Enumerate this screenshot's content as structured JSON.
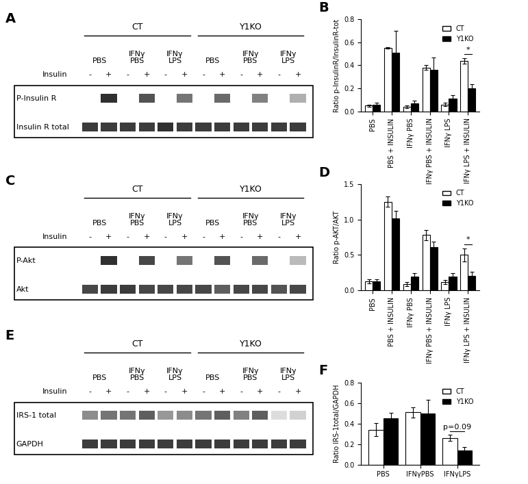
{
  "chart_data": [
    {
      "type": "bar",
      "panel": "B",
      "categories": [
        "PBS",
        "PBS + INSULIN",
        "IFNγ PBS",
        "IFNγ PBS + INSULIN",
        "IFNγ LPS",
        "IFNγ LPS + INSULIN"
      ],
      "y_label": "Ratio p-InsulinR/InsulinR-tot",
      "ylim": [
        0,
        0.8
      ],
      "yticks": [
        {
          "value": 0,
          "label": "0.0"
        },
        {
          "value": 0.2,
          "label": "0.2"
        },
        {
          "value": 0.4,
          "label": "0.4"
        },
        {
          "value": 0.6,
          "label": "0.6"
        },
        {
          "value": 0.8,
          "label": "0.8"
        }
      ],
      "legend": "upper right",
      "grid": false,
      "series": [
        {
          "name": "CT",
          "color": "#ffffff",
          "values": [
            0.05,
            0.55,
            0.04,
            0.38,
            0.06,
            0.44
          ],
          "errors": [
            0.01,
            0.005,
            0.01,
            0.02,
            0.015,
            0.025
          ]
        },
        {
          "name": "Y1KO",
          "color": "#000000",
          "values": [
            0.06,
            0.51,
            0.07,
            0.36,
            0.11,
            0.2
          ],
          "errors": [
            0.015,
            0.19,
            0.025,
            0.11,
            0.03,
            0.035
          ]
        }
      ],
      "annotations": [
        {
          "text": "*",
          "category": "IFNγ LPS + INSULIN"
        }
      ]
    },
    {
      "type": "bar",
      "panel": "D",
      "categories": [
        "PBS",
        "PBS + INSULIN",
        "IFNγ PBS",
        "IFNγ PBS + INSULIN",
        "IFNγ LPS",
        "IFNγ LPS + INSULIN"
      ],
      "y_label": "Ratio p-AKT/AKT",
      "ylim": [
        0,
        1.5
      ],
      "yticks": [
        {
          "value": 0,
          "label": "0.0"
        },
        {
          "value": 0.5,
          "label": "0.5"
        },
        {
          "value": 1,
          "label": "1.0"
        },
        {
          "value": 1.5,
          "label": "1.5"
        }
      ],
      "legend": "upper right",
      "grid": false,
      "series": [
        {
          "name": "CT",
          "color": "#ffffff",
          "values": [
            0.13,
            1.25,
            0.09,
            0.78,
            0.12,
            0.5
          ],
          "errors": [
            0.03,
            0.07,
            0.03,
            0.07,
            0.03,
            0.09
          ]
        },
        {
          "name": "Y1KO",
          "color": "#000000",
          "values": [
            0.13,
            1.01,
            0.19,
            0.61,
            0.19,
            0.2
          ],
          "errors": [
            0.03,
            0.11,
            0.05,
            0.08,
            0.05,
            0.06
          ]
        }
      ],
      "annotations": [
        {
          "text": "*",
          "category": "IFNγ LPS + INSULIN"
        }
      ]
    },
    {
      "type": "bar",
      "panel": "F",
      "categories": [
        "PBS",
        "IFNγPBS",
        "IFNγLPS"
      ],
      "y_label": "Ratio IRS-1total/GAPDH",
      "ylim": [
        0,
        0.8
      ],
      "yticks": [
        {
          "value": 0,
          "label": "0.0"
        },
        {
          "value": 0.2,
          "label": "0.2"
        },
        {
          "value": 0.4,
          "label": "0.4"
        },
        {
          "value": 0.6,
          "label": "0.6"
        },
        {
          "value": 0.8,
          "label": "0.8"
        }
      ],
      "legend": "upper right",
      "grid": false,
      "series": [
        {
          "name": "CT",
          "color": "#ffffff",
          "values": [
            0.34,
            0.51,
            0.26
          ],
          "errors": [
            0.065,
            0.05,
            0.03
          ]
        },
        {
          "name": "Y1KO",
          "color": "#000000",
          "values": [
            0.45,
            0.5,
            0.14
          ],
          "errors": [
            0.055,
            0.13,
            0.03
          ]
        }
      ],
      "annotations": [
        {
          "text": "p=0.09",
          "category": "IFNγLPS"
        }
      ]
    }
  ],
  "blots": [
    {
      "panel": "A",
      "groups": [
        "CT",
        "Y1KO"
      ],
      "conditions": [
        [
          "PBS"
        ],
        [
          "IFNγ",
          "PBS"
        ],
        [
          "IFNγ",
          "LPS"
        ]
      ],
      "insulin_label": "Insulin",
      "insulin_signs": [
        "-",
        "+",
        "-",
        "+",
        "-",
        "+",
        "-",
        "+",
        "-",
        "+",
        "-",
        "+"
      ],
      "bands": [
        {
          "name": "P-Insulin R",
          "intensity": [
            0,
            0.9,
            0,
            0.75,
            0,
            0.6,
            0,
            0.65,
            0,
            0.55,
            0,
            0.35
          ]
        },
        {
          "name": "Insulin R total",
          "intensity": [
            0.85,
            0.85,
            0.85,
            0.85,
            0.9,
            0.85,
            0.85,
            0.85,
            0.85,
            0.85,
            0.85,
            0.85
          ]
        }
      ]
    },
    {
      "panel": "C",
      "groups": [
        "CT",
        "Y1KO"
      ],
      "conditions": [
        [
          "PBS"
        ],
        [
          "IFNγ",
          "PBS"
        ],
        [
          "IFNγ",
          "LPS"
        ]
      ],
      "insulin_label": "Insulin",
      "insulin_signs": [
        "-",
        "+",
        "-",
        "+",
        "-",
        "+",
        "-",
        "+",
        "-",
        "+",
        "-",
        "+"
      ],
      "bands": [
        {
          "name": "P-Akt",
          "intensity": [
            0,
            0.9,
            0,
            0.8,
            0,
            0.6,
            0,
            0.75,
            0,
            0.65,
            0,
            0.3
          ]
        },
        {
          "name": "Akt",
          "intensity": [
            0.8,
            0.85,
            0.85,
            0.8,
            0.8,
            0.8,
            0.8,
            0.7,
            0.8,
            0.8,
            0.75,
            0.8
          ]
        }
      ]
    },
    {
      "panel": "E",
      "groups": [
        "CT",
        "Y1KO"
      ],
      "conditions": [
        [
          "PBS"
        ],
        [
          "IFNγ",
          "PBS"
        ],
        [
          "IFNγ",
          "LPS"
        ]
      ],
      "insulin_label": "Insulin",
      "insulin_signs": [
        "-",
        "+",
        "-",
        "+",
        "-",
        "+",
        "-",
        "+",
        "-",
        "+",
        "-",
        "+"
      ],
      "bands": [
        {
          "name": "IRS-1 total",
          "intensity": [
            0.5,
            0.6,
            0.6,
            0.7,
            0.45,
            0.5,
            0.6,
            0.7,
            0.55,
            0.7,
            0.15,
            0.2
          ]
        },
        {
          "name": "GAPDH",
          "intensity": [
            0.85,
            0.85,
            0.85,
            0.85,
            0.85,
            0.85,
            0.85,
            0.85,
            0.85,
            0.85,
            0.85,
            0.85
          ]
        }
      ]
    }
  ]
}
